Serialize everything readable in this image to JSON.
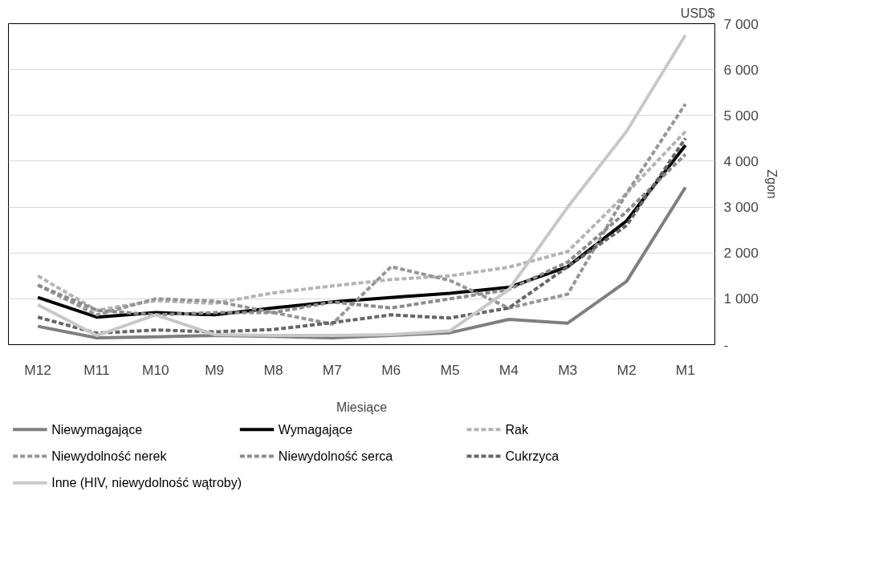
{
  "chart_data": {
    "type": "line",
    "xlabel": "Miesiące",
    "ylabel": "Zgon",
    "annotations": [
      "USD$"
    ],
    "categories": [
      "M12",
      "M11",
      "M10",
      "M9",
      "M8",
      "M7",
      "M6",
      "M5",
      "M4",
      "M3",
      "M2",
      "M1"
    ],
    "ylim": [
      0,
      7000
    ],
    "yticks": [
      {
        "value": 0,
        "label": "-"
      },
      {
        "value": 1000,
        "label": "1 000"
      },
      {
        "value": 2000,
        "label": "2 000"
      },
      {
        "value": 3000,
        "label": "3 000"
      },
      {
        "value": 4000,
        "label": "4 000"
      },
      {
        "value": 5000,
        "label": "5 000"
      },
      {
        "value": 6000,
        "label": "6 000"
      },
      {
        "value": 7000,
        "label": "7 000"
      }
    ],
    "grid": "y",
    "legend": "bottom",
    "marker": "none",
    "series": [
      {
        "name": "Niewymagające",
        "color": "#7f7f7f",
        "line_style": "solid",
        "values": [
          400,
          150,
          170,
          200,
          180,
          150,
          200,
          260,
          550,
          470,
          1380,
          3430
        ]
      },
      {
        "name": "Wymagające",
        "color": "#000000",
        "line_style": "solid",
        "values": [
          1030,
          600,
          700,
          650,
          800,
          930,
          1030,
          1120,
          1250,
          1700,
          2700,
          4350
        ]
      },
      {
        "name": "Rak",
        "color": "#b4b4b4",
        "line_style": "dashed",
        "values": [
          1500,
          750,
          960,
          900,
          1130,
          1280,
          1420,
          1500,
          1690,
          2030,
          3300,
          4650
        ]
      },
      {
        "name": "Niewydolność nerek",
        "color": "#969696",
        "line_style": "dashed",
        "values": [
          1300,
          650,
          1000,
          950,
          700,
          450,
          1700,
          1400,
          800,
          1100,
          3300,
          5250
        ]
      },
      {
        "name": "Niewydolność serca",
        "color": "#8c8c8c",
        "line_style": "dashed",
        "values": [
          1300,
          750,
          650,
          700,
          700,
          930,
          800,
          1000,
          1200,
          1800,
          2900,
          4150
        ]
      },
      {
        "name": "Cukrzyca",
        "color": "#666666",
        "line_style": "dashed",
        "values": [
          600,
          250,
          320,
          280,
          330,
          480,
          650,
          580,
          800,
          1700,
          2600,
          4500
        ]
      },
      {
        "name": "Inne (HIV, niewydolność wątroby)",
        "color": "#c8c8c8",
        "line_style": "solid",
        "values": [
          870,
          200,
          650,
          220,
          200,
          200,
          220,
          300,
          1200,
          3000,
          4650,
          6750
        ]
      }
    ]
  }
}
